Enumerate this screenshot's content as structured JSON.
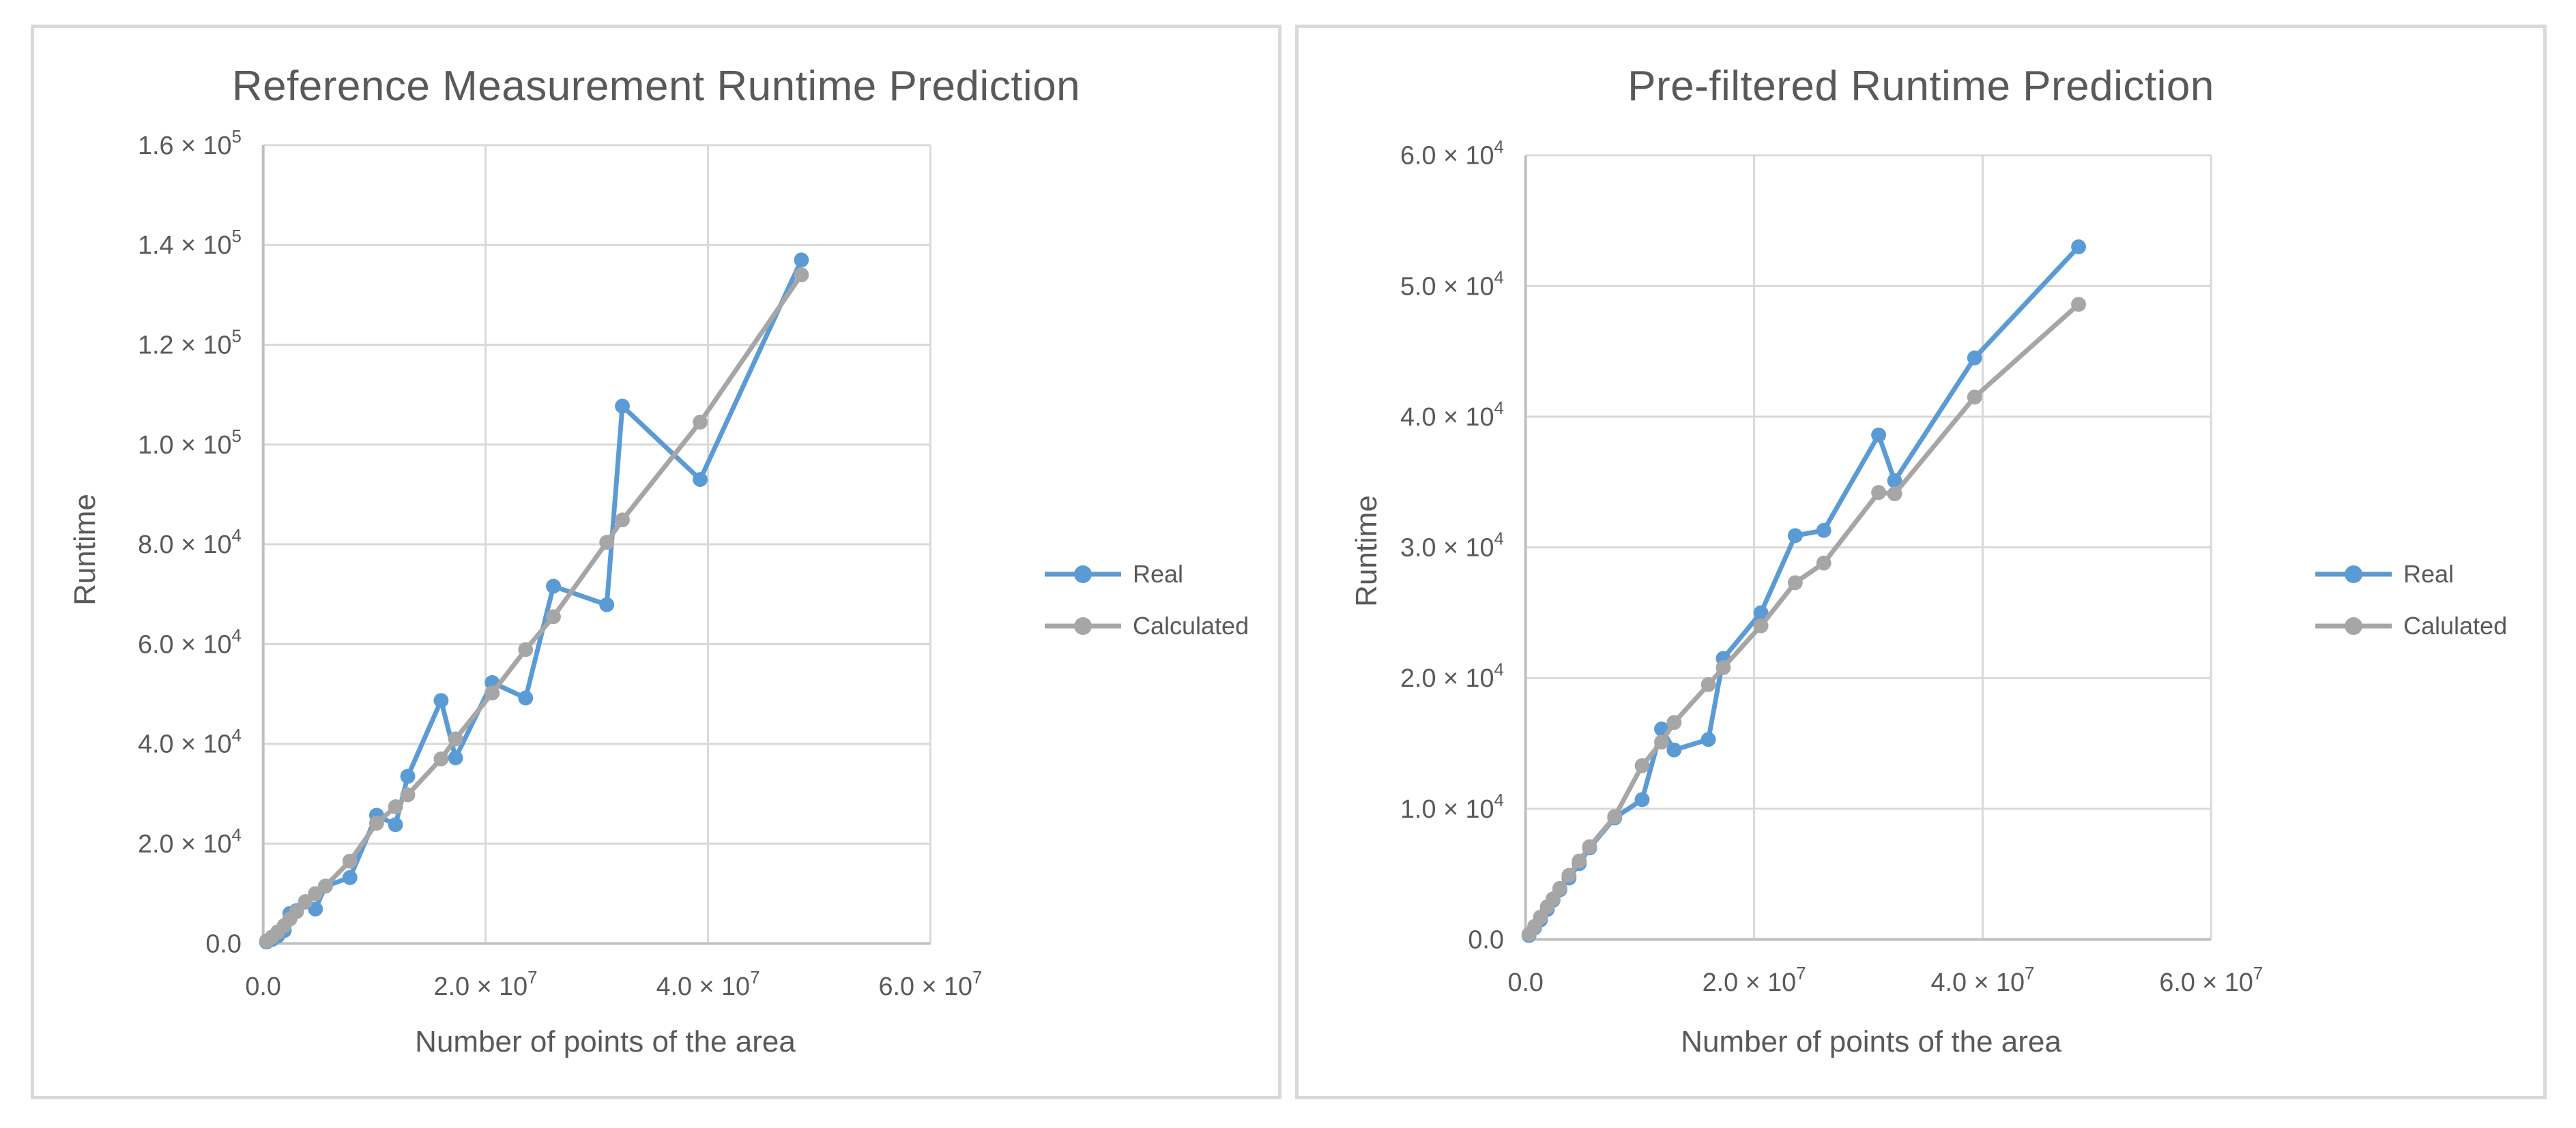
{
  "page": {
    "background": "#ffffff",
    "panel_border_color": "#d9d9d9",
    "gridline_color": "#d9d9d9",
    "axis_line_color": "#bfbfbf",
    "text_color": "#595959"
  },
  "chart_data": [
    {
      "type": "line",
      "title": "Reference Measurement Runtime Prediction",
      "xlabel": "Number of points of the area",
      "ylabel": "Runtime",
      "xlim": [
        0,
        60000000
      ],
      "ylim": [
        0,
        160000
      ],
      "grid": true,
      "legend_position": "right",
      "marker": "circle",
      "x_tick_values": [
        0,
        20000000,
        40000000,
        60000000
      ],
      "x_ticks": [
        {
          "label": "0.0",
          "sup": ""
        },
        {
          "label": "2.0 × 10",
          "sup": "7"
        },
        {
          "label": "4.0 × 10",
          "sup": "7"
        },
        {
          "label": "6.0 × 10",
          "sup": "7"
        }
      ],
      "y_tick_values": [
        0,
        20000,
        40000,
        60000,
        80000,
        100000,
        120000,
        140000,
        160000
      ],
      "y_ticks": [
        {
          "label": "0.0",
          "sup": ""
        },
        {
          "label": "2.0 × 10",
          "sup": "4"
        },
        {
          "label": "4.0 × 10",
          "sup": "4"
        },
        {
          "label": "6.0 × 10",
          "sup": "4"
        },
        {
          "label": "8.0 × 10",
          "sup": "4"
        },
        {
          "label": "1.0 × 10",
          "sup": "5"
        },
        {
          "label": "1.2 × 10",
          "sup": "5"
        },
        {
          "label": "1.4 × 10",
          "sup": "5"
        },
        {
          "label": "1.6 × 10",
          "sup": "5"
        }
      ],
      "x": [
        300000,
        800000,
        1300000,
        1900000,
        2400000,
        3000000,
        3800000,
        4700000,
        5600000,
        7800000,
        10200000,
        11900000,
        13000000,
        16000000,
        17300000,
        20600000,
        23600000,
        26100000,
        30900000,
        32300000,
        39300000,
        48400000
      ],
      "series": [
        {
          "name": "Real",
          "color": "#5b9bd5",
          "values": [
            300,
            800,
            1500,
            2600,
            6000,
            6600,
            8300,
            6900,
            11500,
            13200,
            25700,
            23800,
            33500,
            48700,
            37200,
            52300,
            49200,
            71600,
            67900,
            107700,
            93000,
            137000
          ]
        },
        {
          "name": "Calculated",
          "color": "#a6a6a6",
          "values": [
            500,
            1300,
            2300,
            3600,
            4900,
            6400,
            8400,
            10000,
            11500,
            16500,
            24100,
            27400,
            29800,
            37000,
            41000,
            50200,
            58900,
            65500,
            80400,
            84900,
            104500,
            134000
          ]
        }
      ]
    },
    {
      "type": "line",
      "title": "Pre-filtered Runtime Prediction",
      "xlabel": "Number of points of the area",
      "ylabel": "Runtime",
      "xlim": [
        0,
        60000000
      ],
      "ylim": [
        0,
        60000
      ],
      "grid": true,
      "legend_position": "right",
      "marker": "circle",
      "x_tick_values": [
        0,
        20000000,
        40000000,
        60000000
      ],
      "x_ticks": [
        {
          "label": "0.0",
          "sup": ""
        },
        {
          "label": "2.0 × 10",
          "sup": "7"
        },
        {
          "label": "4.0 × 10",
          "sup": "7"
        },
        {
          "label": "6.0 × 10",
          "sup": "7"
        }
      ],
      "y_tick_values": [
        0,
        10000,
        20000,
        30000,
        40000,
        50000,
        60000
      ],
      "y_ticks": [
        {
          "label": "0.0",
          "sup": ""
        },
        {
          "label": "1.0 × 10",
          "sup": "4"
        },
        {
          "label": "2.0 × 10",
          "sup": "4"
        },
        {
          "label": "3.0 × 10",
          "sup": "4"
        },
        {
          "label": "4.0 × 10",
          "sup": "4"
        },
        {
          "label": "5.0 × 10",
          "sup": "4"
        },
        {
          "label": "6.0 × 10",
          "sup": "4"
        }
      ],
      "x": [
        300000,
        800000,
        1300000,
        1900000,
        2400000,
        3000000,
        3800000,
        4700000,
        5600000,
        7800000,
        10200000,
        11900000,
        13000000,
        16000000,
        17300000,
        20600000,
        23600000,
        26100000,
        30900000,
        32300000,
        39300000,
        48400000
      ],
      "series": [
        {
          "name": "Real",
          "color": "#5b9bd5",
          "values": [
            300,
            900,
            1500,
            2300,
            3000,
            3800,
            4700,
            5800,
            7000,
            9300,
            10700,
            16100,
            14500,
            15300,
            21500,
            25000,
            30900,
            31300,
            38600,
            35100,
            44500,
            53000
          ]
        },
        {
          "name": "Calulated",
          "color": "#a6a6a6",
          "values": [
            400,
            1000,
            1700,
            2500,
            3100,
            3900,
            4900,
            6000,
            7100,
            9400,
            13300,
            15100,
            16600,
            19500,
            20800,
            24000,
            27300,
            28800,
            34200,
            34100,
            41500,
            48600
          ]
        }
      ]
    }
  ]
}
